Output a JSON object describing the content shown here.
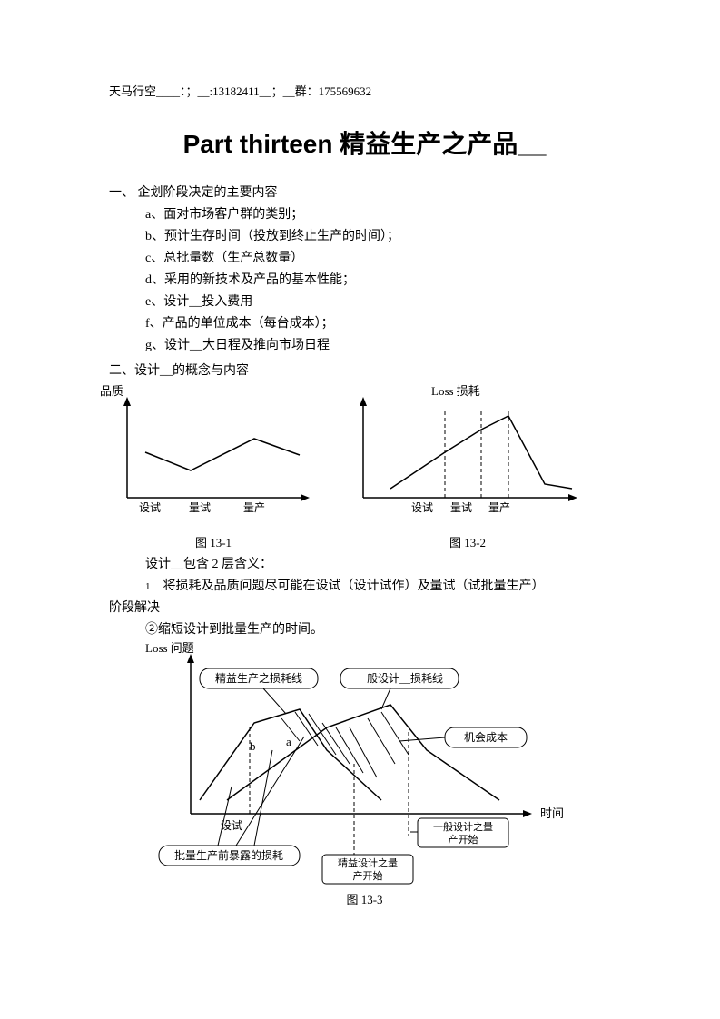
{
  "header": "天马行空____：；__:13182411__；__群：175569632",
  "title": "Part thirteen  精益生产之产品__",
  "section1": {
    "heading": "一、 企划阶段决定的主要内容",
    "items": [
      "a、面对市场客户群的类别；",
      "b、预计生存时间（投放到终止生产的时间）；",
      "c、总批量数（生产总数量）",
      "d、采用的新技术及产品的基本性能；",
      "e、设计__投入费用",
      "f、产品的单位成本（每台成本）；",
      "g、设计__大日程及推向市场日程"
    ]
  },
  "section2": {
    "heading": "二、设计__的概念与内容"
  },
  "chart1": {
    "ylabel": "品质",
    "xticks": [
      "设试",
      "量试",
      "量产"
    ],
    "caption": "图 13-1",
    "points": [
      [
        20,
        55
      ],
      [
        70,
        75
      ],
      [
        140,
        40
      ],
      [
        190,
        58
      ]
    ],
    "color": "#000000"
  },
  "chart2": {
    "ylabel": "Loss 损耗",
    "xticks": [
      "设试",
      "量试",
      "量产"
    ],
    "caption": "图 13-2",
    "points": [
      [
        30,
        95
      ],
      [
        90,
        55
      ],
      [
        130,
        30
      ],
      [
        160,
        15
      ],
      [
        200,
        90
      ],
      [
        230,
        95
      ]
    ],
    "dashx": [
      90,
      130,
      160
    ],
    "color": "#000000"
  },
  "design_meaning": "设计__包含 2 层含义：",
  "meaning1_num": "1",
  "meaning1": "将损耗及品质问题尽可能在设试（设计试作）及量试（试批量生产）",
  "meaning1b": "阶段解决",
  "meaning2": "②缩短设计到批量生产的时间。",
  "chart3": {
    "ylabel": "Loss 问题",
    "xlabel_right": "时间",
    "xtick": "设试",
    "caption": "图 13-3",
    "box_lean": "精益生产之损耗线",
    "box_general": "一般设计__损耗线",
    "box_opp": "机会成本",
    "box_exposed": "批量生产前暴露的损耗",
    "box_lean_start": "精益设计之量产开始",
    "box_general_start": "一般设计之量产开始",
    "letter_a": "a",
    "letter_b": "b",
    "color": "#000000"
  }
}
